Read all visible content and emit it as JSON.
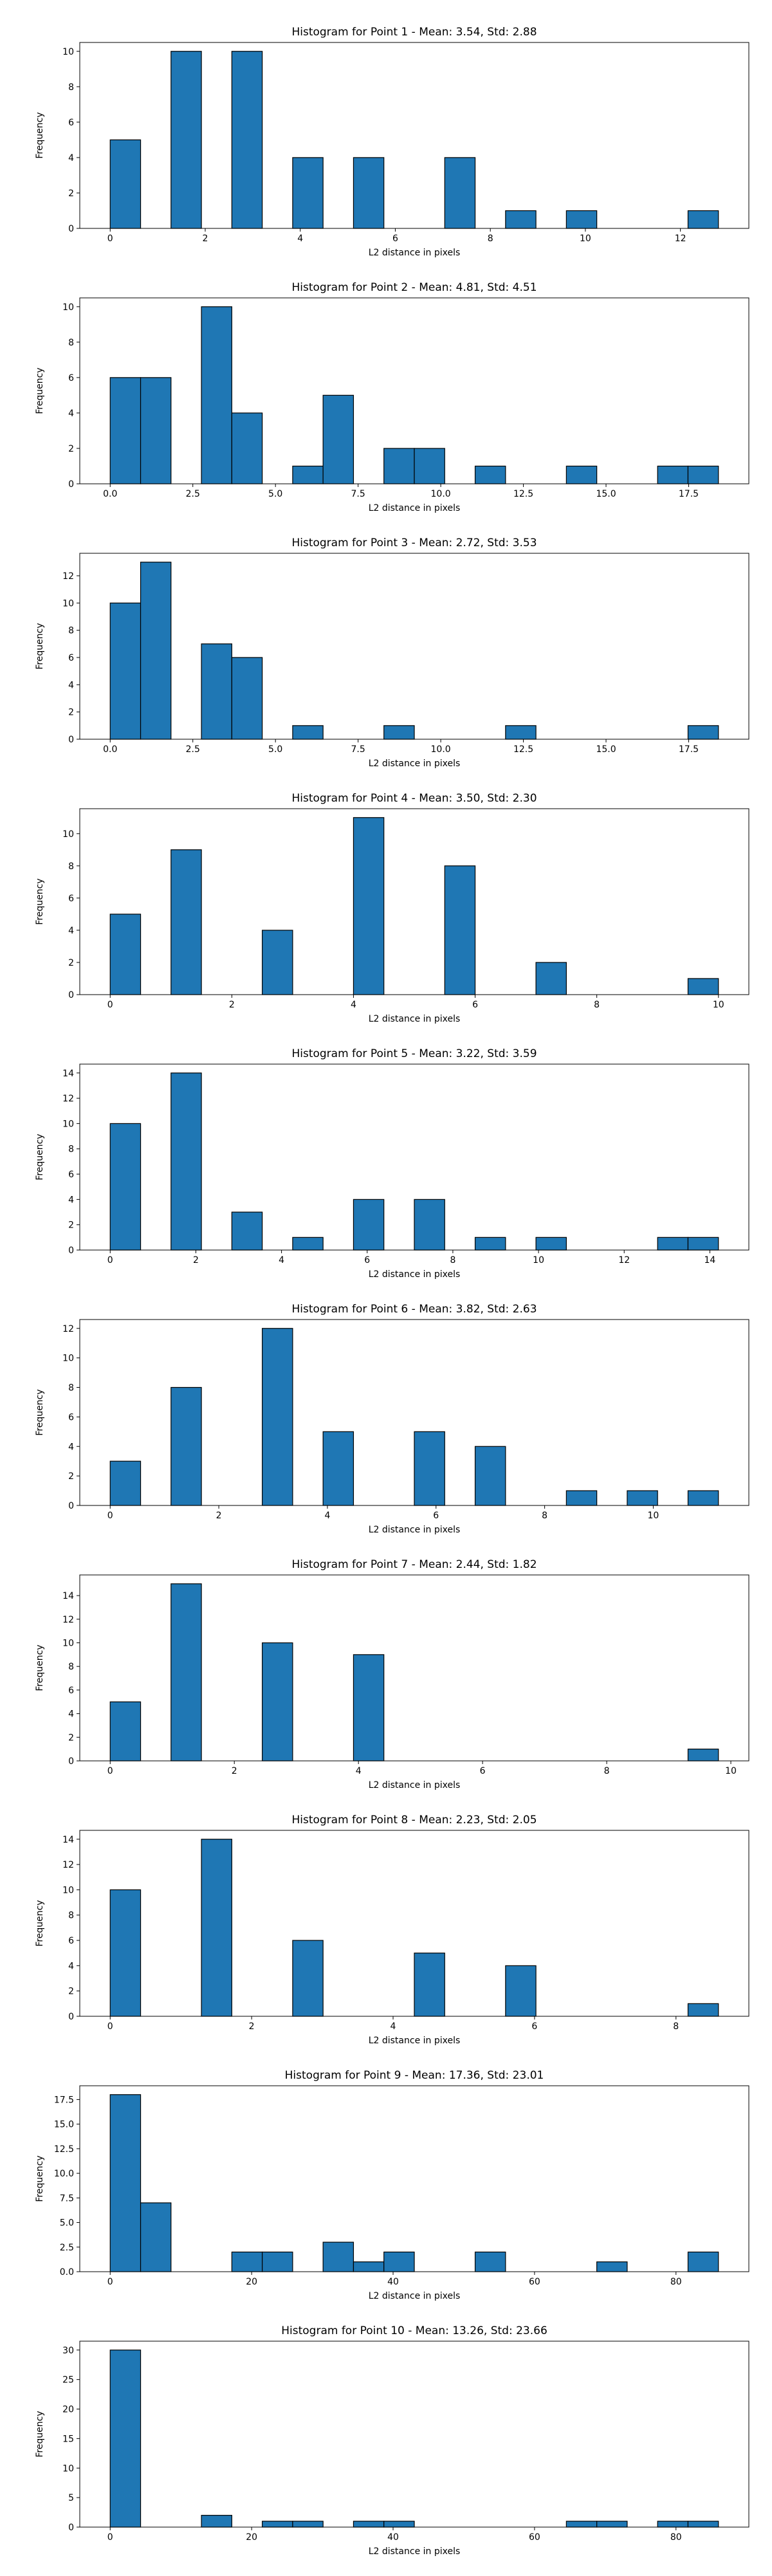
{
  "figure": {
    "bar_color": "#1f77b4",
    "edge_color": "#000000"
  },
  "chart_data": [
    {
      "type": "bar",
      "title": "Histogram for Point 1 - Mean: 3.54, Std: 2.88",
      "xlabel": "L2 distance in pixels",
      "ylabel": "Frequency",
      "xlim": [
        -0.64,
        13.44
      ],
      "ylim": [
        0,
        10.5
      ],
      "xticks": [
        0,
        2,
        4,
        6,
        8,
        10,
        12
      ],
      "xtick_labels": [
        "0",
        "2",
        "4",
        "6",
        "8",
        "10",
        "12"
      ],
      "yticks": [
        0,
        2,
        4,
        6,
        8,
        10
      ],
      "ytick_labels": [
        "0",
        "2",
        "4",
        "6",
        "8",
        "10"
      ],
      "bins": [
        {
          "x0": 0,
          "x1": 0.64,
          "count": 5
        },
        {
          "x0": 1.28,
          "x1": 1.92,
          "count": 10
        },
        {
          "x0": 2.56,
          "x1": 3.2,
          "count": 10
        },
        {
          "x0": 3.84,
          "x1": 4.48,
          "count": 4
        },
        {
          "x0": 5.12,
          "x1": 5.76,
          "count": 4
        },
        {
          "x0": 7.04,
          "x1": 7.68,
          "count": 4
        },
        {
          "x0": 8.32,
          "x1": 8.96,
          "count": 1
        },
        {
          "x0": 9.6,
          "x1": 10.24,
          "count": 1
        },
        {
          "x0": 12.16,
          "x1": 12.8,
          "count": 1
        }
      ]
    },
    {
      "type": "bar",
      "title": "Histogram for Point 2 - Mean: 4.81, Std: 4.51",
      "xlabel": "L2 distance in pixels",
      "ylabel": "Frequency",
      "xlim": [
        -0.92,
        19.32
      ],
      "ylim": [
        0,
        10.5
      ],
      "xticks": [
        0,
        2.5,
        5,
        7.5,
        10,
        12.5,
        15,
        17.5
      ],
      "xtick_labels": [
        "0.0",
        "2.5",
        "5.0",
        "7.5",
        "10.0",
        "12.5",
        "15.0",
        "17.5"
      ],
      "yticks": [
        0,
        2,
        4,
        6,
        8,
        10
      ],
      "ytick_labels": [
        "0",
        "2",
        "4",
        "6",
        "8",
        "10"
      ],
      "bins": [
        {
          "x0": 0,
          "x1": 0.92,
          "count": 6
        },
        {
          "x0": 0.92,
          "x1": 1.84,
          "count": 6
        },
        {
          "x0": 2.76,
          "x1": 3.68,
          "count": 10
        },
        {
          "x0": 3.68,
          "x1": 4.6,
          "count": 4
        },
        {
          "x0": 5.52,
          "x1": 6.44,
          "count": 1
        },
        {
          "x0": 6.44,
          "x1": 7.36,
          "count": 5
        },
        {
          "x0": 8.28,
          "x1": 9.2,
          "count": 2
        },
        {
          "x0": 9.2,
          "x1": 10.12,
          "count": 2
        },
        {
          "x0": 11.04,
          "x1": 11.96,
          "count": 1
        },
        {
          "x0": 13.8,
          "x1": 14.72,
          "count": 1
        },
        {
          "x0": 16.56,
          "x1": 17.48,
          "count": 1
        },
        {
          "x0": 17.48,
          "x1": 18.4,
          "count": 1
        }
      ]
    },
    {
      "type": "bar",
      "title": "Histogram for Point 3 - Mean: 2.72, Std: 3.53",
      "xlabel": "L2 distance in pixels",
      "ylabel": "Frequency",
      "xlim": [
        -0.92,
        19.32
      ],
      "ylim": [
        0,
        13.65
      ],
      "xticks": [
        0,
        2.5,
        5,
        7.5,
        10,
        12.5,
        15,
        17.5
      ],
      "xtick_labels": [
        "0.0",
        "2.5",
        "5.0",
        "7.5",
        "10.0",
        "12.5",
        "15.0",
        "17.5"
      ],
      "yticks": [
        0,
        2,
        4,
        6,
        8,
        10,
        12
      ],
      "ytick_labels": [
        "0",
        "2",
        "4",
        "6",
        "8",
        "10",
        "12"
      ],
      "bins": [
        {
          "x0": 0,
          "x1": 0.92,
          "count": 10
        },
        {
          "x0": 0.92,
          "x1": 1.84,
          "count": 13
        },
        {
          "x0": 2.76,
          "x1": 3.68,
          "count": 7
        },
        {
          "x0": 3.68,
          "x1": 4.6,
          "count": 6
        },
        {
          "x0": 5.52,
          "x1": 6.44,
          "count": 1
        },
        {
          "x0": 8.28,
          "x1": 9.2,
          "count": 1
        },
        {
          "x0": 11.96,
          "x1": 12.88,
          "count": 1
        },
        {
          "x0": 17.48,
          "x1": 18.4,
          "count": 1
        }
      ]
    },
    {
      "type": "bar",
      "title": "Histogram for Point 4 - Mean: 3.50, Std: 2.30",
      "xlabel": "L2 distance in pixels",
      "ylabel": "Frequency",
      "xlim": [
        -0.5,
        10.5
      ],
      "ylim": [
        0,
        11.55
      ],
      "xticks": [
        0,
        2,
        4,
        6,
        8,
        10
      ],
      "xtick_labels": [
        "0",
        "2",
        "4",
        "6",
        "8",
        "10"
      ],
      "yticks": [
        0,
        2,
        4,
        6,
        8,
        10
      ],
      "ytick_labels": [
        "0",
        "2",
        "4",
        "6",
        "8",
        "10"
      ],
      "bins": [
        {
          "x0": 0,
          "x1": 0.5,
          "count": 5
        },
        {
          "x0": 1,
          "x1": 1.5,
          "count": 9
        },
        {
          "x0": 2.5,
          "x1": 3,
          "count": 4
        },
        {
          "x0": 4,
          "x1": 4.5,
          "count": 11
        },
        {
          "x0": 5.5,
          "x1": 6,
          "count": 8
        },
        {
          "x0": 7,
          "x1": 7.5,
          "count": 2
        },
        {
          "x0": 9.5,
          "x1": 10,
          "count": 1
        }
      ]
    },
    {
      "type": "bar",
      "title": "Histogram for Point 5 - Mean: 3.22, Std: 3.59",
      "xlabel": "L2 distance in pixels",
      "ylabel": "Frequency",
      "xlim": [
        -0.71,
        14.91
      ],
      "ylim": [
        0,
        14.7
      ],
      "xticks": [
        0,
        2,
        4,
        6,
        8,
        10,
        12,
        14
      ],
      "xtick_labels": [
        "0",
        "2",
        "4",
        "6",
        "8",
        "10",
        "12",
        "14"
      ],
      "yticks": [
        0,
        2,
        4,
        6,
        8,
        10,
        12,
        14
      ],
      "ytick_labels": [
        "0",
        "2",
        "4",
        "6",
        "8",
        "10",
        "12",
        "14"
      ],
      "bins": [
        {
          "x0": 0,
          "x1": 0.71,
          "count": 10
        },
        {
          "x0": 1.42,
          "x1": 2.13,
          "count": 14
        },
        {
          "x0": 2.84,
          "x1": 3.55,
          "count": 3
        },
        {
          "x0": 4.26,
          "x1": 4.97,
          "count": 1
        },
        {
          "x0": 5.68,
          "x1": 6.39,
          "count": 4
        },
        {
          "x0": 7.1,
          "x1": 7.81,
          "count": 4
        },
        {
          "x0": 8.52,
          "x1": 9.23,
          "count": 1
        },
        {
          "x0": 9.94,
          "x1": 10.65,
          "count": 1
        },
        {
          "x0": 12.78,
          "x1": 13.49,
          "count": 1
        },
        {
          "x0": 13.49,
          "x1": 14.2,
          "count": 1
        }
      ]
    },
    {
      "type": "bar",
      "title": "Histogram for Point 6 - Mean: 3.82, Std: 2.63",
      "xlabel": "L2 distance in pixels",
      "ylabel": "Frequency",
      "xlim": [
        -0.56,
        11.76
      ],
      "ylim": [
        0,
        12.6
      ],
      "xticks": [
        0,
        2,
        4,
        6,
        8,
        10
      ],
      "xtick_labels": [
        "0",
        "2",
        "4",
        "6",
        "8",
        "10"
      ],
      "yticks": [
        0,
        2,
        4,
        6,
        8,
        10,
        12
      ],
      "ytick_labels": [
        "0",
        "2",
        "4",
        "6",
        "8",
        "10",
        "12"
      ],
      "bins": [
        {
          "x0": 0,
          "x1": 0.56,
          "count": 3
        },
        {
          "x0": 1.12,
          "x1": 1.68,
          "count": 8
        },
        {
          "x0": 2.8,
          "x1": 3.36,
          "count": 12
        },
        {
          "x0": 3.92,
          "x1": 4.48,
          "count": 5
        },
        {
          "x0": 5.6,
          "x1": 6.16,
          "count": 5
        },
        {
          "x0": 6.72,
          "x1": 7.28,
          "count": 4
        },
        {
          "x0": 8.4,
          "x1": 8.96,
          "count": 1
        },
        {
          "x0": 9.52,
          "x1": 10.08,
          "count": 1
        },
        {
          "x0": 10.64,
          "x1": 11.2,
          "count": 1
        }
      ]
    },
    {
      "type": "bar",
      "title": "Histogram for Point 7 - Mean: 2.44, Std: 1.82",
      "xlabel": "L2 distance in pixels",
      "ylabel": "Frequency",
      "xlim": [
        -0.49,
        10.29
      ],
      "ylim": [
        0,
        15.75
      ],
      "xticks": [
        0,
        2,
        4,
        6,
        8,
        10
      ],
      "xtick_labels": [
        "0",
        "2",
        "4",
        "6",
        "8",
        "10"
      ],
      "yticks": [
        0,
        2,
        4,
        6,
        8,
        10,
        12,
        14
      ],
      "ytick_labels": [
        "0",
        "2",
        "4",
        "6",
        "8",
        "10",
        "12",
        "14"
      ],
      "bins": [
        {
          "x0": 0,
          "x1": 0.49,
          "count": 5
        },
        {
          "x0": 0.98,
          "x1": 1.47,
          "count": 15
        },
        {
          "x0": 2.45,
          "x1": 2.94,
          "count": 10
        },
        {
          "x0": 3.92,
          "x1": 4.41,
          "count": 9
        },
        {
          "x0": 9.31,
          "x1": 9.8,
          "count": 1
        }
      ]
    },
    {
      "type": "bar",
      "title": "Histogram for Point 8 - Mean: 2.23, Std: 2.05",
      "xlabel": "L2 distance in pixels",
      "ylabel": "Frequency",
      "xlim": [
        -0.43,
        9.03
      ],
      "ylim": [
        0,
        14.7
      ],
      "xticks": [
        0,
        2,
        4,
        6,
        8
      ],
      "xtick_labels": [
        "0",
        "2",
        "4",
        "6",
        "8"
      ],
      "yticks": [
        0,
        2,
        4,
        6,
        8,
        10,
        12,
        14
      ],
      "ytick_labels": [
        "0",
        "2",
        "4",
        "6",
        "8",
        "10",
        "12",
        "14"
      ],
      "bins": [
        {
          "x0": 0,
          "x1": 0.43,
          "count": 10
        },
        {
          "x0": 1.29,
          "x1": 1.72,
          "count": 14
        },
        {
          "x0": 2.58,
          "x1": 3.01,
          "count": 6
        },
        {
          "x0": 4.3,
          "x1": 4.73,
          "count": 5
        },
        {
          "x0": 5.59,
          "x1": 6.02,
          "count": 4
        },
        {
          "x0": 8.17,
          "x1": 8.6,
          "count": 1
        }
      ]
    },
    {
      "type": "bar",
      "title": "Histogram for Point 9 - Mean: 17.36, Std: 23.01",
      "xlabel": "L2 distance in pixels",
      "ylabel": "Frequency",
      "xlim": [
        -4.3,
        90.3
      ],
      "ylim": [
        0,
        18.9
      ],
      "xticks": [
        0,
        20,
        40,
        60,
        80
      ],
      "xtick_labels": [
        "0",
        "20",
        "40",
        "60",
        "80"
      ],
      "yticks": [
        0,
        2.5,
        5,
        7.5,
        10,
        12.5,
        15,
        17.5
      ],
      "ytick_labels": [
        "0.0",
        "2.5",
        "5.0",
        "7.5",
        "10.0",
        "12.5",
        "15.0",
        "17.5"
      ],
      "bins": [
        {
          "x0": 0,
          "x1": 4.3,
          "count": 18
        },
        {
          "x0": 4.3,
          "x1": 8.6,
          "count": 7
        },
        {
          "x0": 17.2,
          "x1": 21.5,
          "count": 2
        },
        {
          "x0": 21.5,
          "x1": 25.8,
          "count": 2
        },
        {
          "x0": 30.1,
          "x1": 34.4,
          "count": 3
        },
        {
          "x0": 34.4,
          "x1": 38.7,
          "count": 1
        },
        {
          "x0": 38.7,
          "x1": 43,
          "count": 2
        },
        {
          "x0": 51.6,
          "x1": 55.9,
          "count": 2
        },
        {
          "x0": 68.8,
          "x1": 73.1,
          "count": 1
        },
        {
          "x0": 81.7,
          "x1": 86,
          "count": 2
        }
      ]
    },
    {
      "type": "bar",
      "title": "Histogram for Point 10 - Mean: 13.26, Std: 23.66",
      "xlabel": "L2 distance in pixels",
      "ylabel": "Frequency",
      "xlim": [
        -4.3,
        90.3
      ],
      "ylim": [
        0,
        31.5
      ],
      "xticks": [
        0,
        20,
        40,
        60,
        80
      ],
      "xtick_labels": [
        "0",
        "20",
        "40",
        "60",
        "80"
      ],
      "yticks": [
        0,
        5,
        10,
        15,
        20,
        25,
        30
      ],
      "ytick_labels": [
        "0",
        "5",
        "10",
        "15",
        "20",
        "25",
        "30"
      ],
      "bins": [
        {
          "x0": 0,
          "x1": 4.3,
          "count": 30
        },
        {
          "x0": 12.9,
          "x1": 17.2,
          "count": 2
        },
        {
          "x0": 21.5,
          "x1": 25.8,
          "count": 1
        },
        {
          "x0": 25.8,
          "x1": 30.1,
          "count": 1
        },
        {
          "x0": 34.4,
          "x1": 38.7,
          "count": 1
        },
        {
          "x0": 38.7,
          "x1": 43,
          "count": 1
        },
        {
          "x0": 64.5,
          "x1": 68.8,
          "count": 1
        },
        {
          "x0": 68.8,
          "x1": 73.1,
          "count": 1
        },
        {
          "x0": 77.4,
          "x1": 81.7,
          "count": 1
        },
        {
          "x0": 81.7,
          "x1": 86,
          "count": 1
        }
      ]
    }
  ]
}
